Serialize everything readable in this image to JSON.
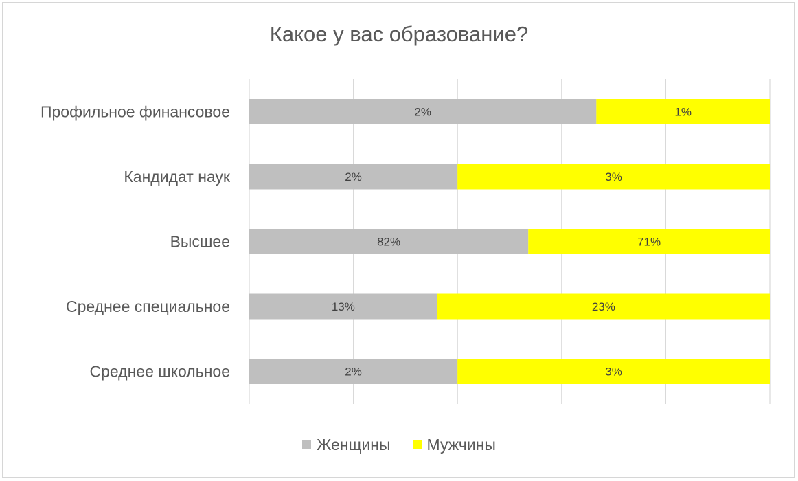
{
  "chart_data": {
    "type": "bar",
    "orientation": "horizontal",
    "stacked": "percent",
    "title": "Какое у вас образование?",
    "categories": [
      "Профильное финансовое",
      "Кандидат наук",
      "Высшее",
      "Среднее специальное",
      "Среднее школьное"
    ],
    "series": [
      {
        "name": "Женщины",
        "color": "#bfbfbf",
        "values": [
          2,
          2,
          82,
          13,
          2
        ],
        "labels": [
          "2%",
          "2%",
          "82%",
          "13%",
          "2%"
        ]
      },
      {
        "name": "Мужчины",
        "color": "#ffff00",
        "values": [
          1,
          3,
          71,
          23,
          3
        ],
        "labels": [
          "1%",
          "3%",
          "71%",
          "23%",
          "3%"
        ]
      }
    ],
    "xlim": [
      0,
      100
    ],
    "grid": true,
    "legend": "bottom"
  }
}
